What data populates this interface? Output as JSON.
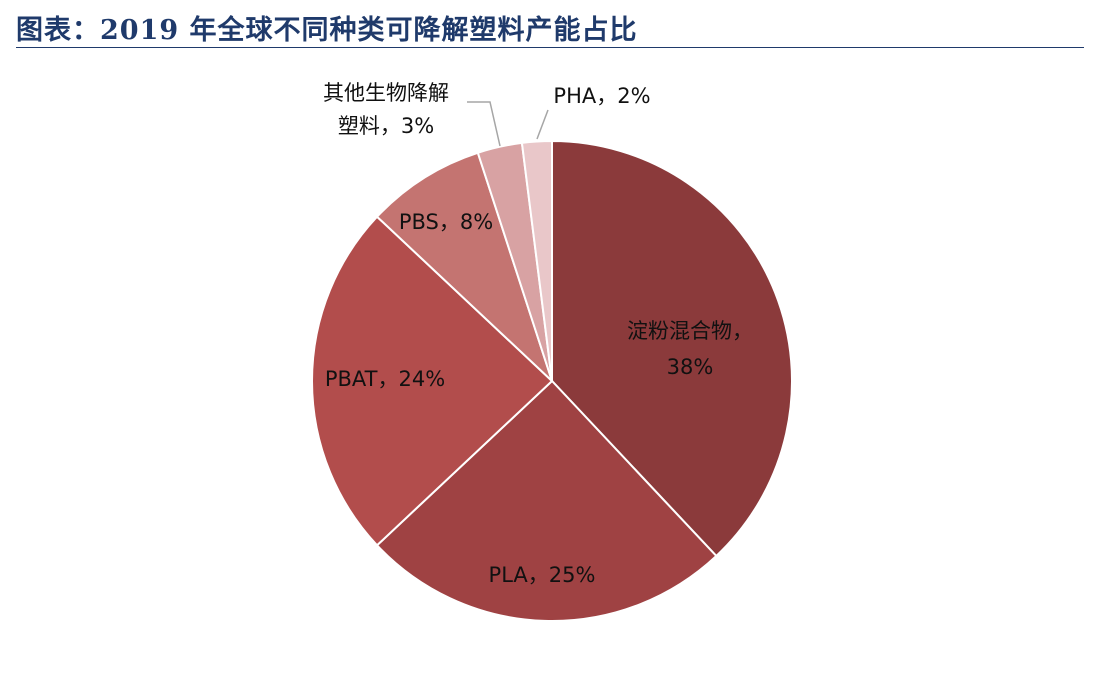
{
  "header": {
    "title": "图表：2019 年全球不同种类可降解塑料产能占比"
  },
  "chart_data": {
    "type": "pie",
    "title": "",
    "slices": [
      {
        "label": "淀粉混合物",
        "value": 38,
        "display": "淀粉混合物，38%",
        "color": "#8b3a3b"
      },
      {
        "label": "PLA",
        "value": 25,
        "display": "PLA，25%",
        "color": "#9f4243"
      },
      {
        "label": "PBAT",
        "value": 24,
        "display": "PBAT，24%",
        "color": "#b24d4c"
      },
      {
        "label": "PBS",
        "value": 8,
        "display": "PBS，8%",
        "color": "#c47471"
      },
      {
        "label": "其他生物降解塑料",
        "value": 3,
        "display": "其他生物降解塑料，3%",
        "color": "#d8a2a3"
      },
      {
        "label": "PHA",
        "value": 2,
        "display": "PHA，2%",
        "color": "#e9c7c9"
      }
    ],
    "legend": "none",
    "start_angle": "12 o'clock",
    "direction": "clockwise"
  }
}
